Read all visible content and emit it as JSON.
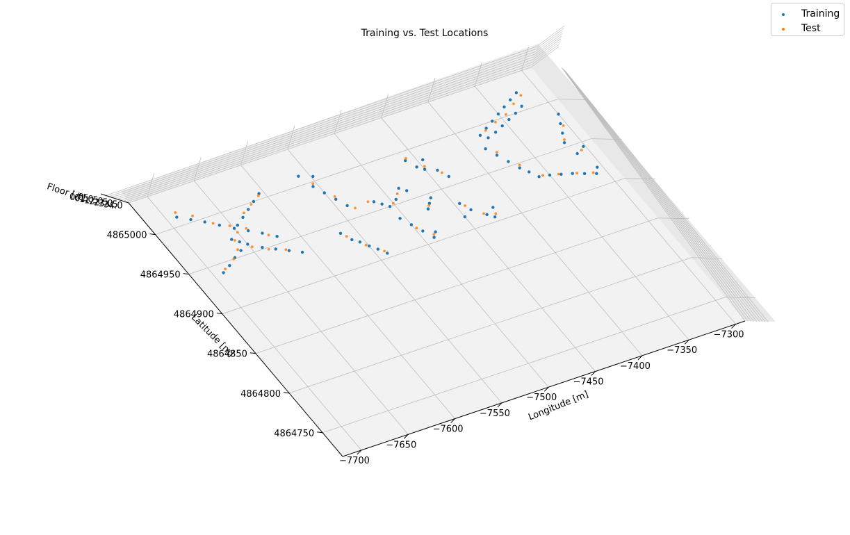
{
  "chart_data": {
    "type": "scatter",
    "projection": "3d",
    "title": "Training vs. Test Locations",
    "xlabel": "Longitude [m]",
    "ylabel": "Latitude [m]",
    "zlabel": "Floor [#]",
    "xticks": [
      "−7700",
      "−7650",
      "−7600",
      "−7550",
      "−7500",
      "−7450",
      "−7400",
      "−7350",
      "−7300"
    ],
    "yticks": [
      "4864750",
      "4864800",
      "4864850",
      "4864900",
      "4864950",
      "4865000"
    ],
    "zticks": [
      "0.0",
      "0.5",
      "1.0",
      "1.5",
      "2.0",
      "2.5",
      "3.0",
      "3.5",
      "4.0"
    ],
    "xlim": [
      -7720,
      -7290
    ],
    "ylim": [
      4864720,
      4865040
    ],
    "grid": true,
    "legend": "top-right",
    "series": [
      {
        "name": "Training",
        "color": "#1f77b4",
        "points": [
          [
            -7690,
            4865010
          ],
          [
            -7680,
            4865003
          ],
          [
            -7670,
            4864996
          ],
          [
            -7660,
            4864988
          ],
          [
            -7650,
            4864980
          ],
          [
            -7640,
            4864973
          ],
          [
            -7630,
            4864966
          ],
          [
            -7620,
            4864958
          ],
          [
            -7635,
            4864988
          ],
          [
            -7625,
            4864994
          ],
          [
            -7615,
            4865000
          ],
          [
            -7605,
            4865006
          ],
          [
            -7645,
            4864982
          ],
          [
            -7690,
            4864940
          ],
          [
            -7680,
            4864945
          ],
          [
            -7670,
            4864951
          ],
          [
            -7660,
            4864956
          ],
          [
            -7650,
            4864960
          ],
          [
            -7640,
            4864952
          ],
          [
            -7630,
            4864946
          ],
          [
            -7620,
            4864940
          ],
          [
            -7610,
            4864934
          ],
          [
            -7660,
            4864970
          ],
          [
            -7655,
            4864965
          ],
          [
            -7560,
            4865010
          ],
          [
            -7555,
            4864995
          ],
          [
            -7550,
            4864985
          ],
          [
            -7545,
            4864975
          ],
          [
            -7540,
            4864965
          ],
          [
            -7548,
            4865005
          ],
          [
            -7565,
            4864940
          ],
          [
            -7560,
            4864930
          ],
          [
            -7555,
            4864925
          ],
          [
            -7550,
            4864918
          ],
          [
            -7545,
            4864912
          ],
          [
            -7540,
            4864905
          ],
          [
            -7515,
            4864960
          ],
          [
            -7510,
            4864955
          ],
          [
            -7505,
            4864950
          ],
          [
            -7495,
            4864955
          ],
          [
            -7485,
            4864965
          ],
          [
            -7480,
            4864960
          ],
          [
            -7505,
            4864935
          ],
          [
            -7500,
            4864925
          ],
          [
            -7495,
            4864915
          ],
          [
            -7490,
            4864905
          ],
          [
            -7485,
            4864910
          ],
          [
            -7475,
            4864935
          ],
          [
            -7470,
            4864940
          ],
          [
            -7465,
            4864945
          ],
          [
            -7460,
            4864990
          ],
          [
            -7455,
            4864980
          ],
          [
            -7450,
            4864975
          ],
          [
            -7445,
            4864985
          ],
          [
            -7440,
            4864970
          ],
          [
            -7435,
            4864960
          ],
          [
            -7445,
            4864930
          ],
          [
            -7440,
            4864920
          ],
          [
            -7430,
            4864910
          ],
          [
            -7425,
            4864905
          ],
          [
            -7420,
            4864915
          ],
          [
            -7450,
            4864915
          ],
          [
            -7380,
            4864990
          ],
          [
            -7370,
            4864995
          ],
          [
            -7360,
            4865000
          ],
          [
            -7350,
            4865005
          ],
          [
            -7340,
            4865010
          ],
          [
            -7330,
            4865015
          ],
          [
            -7320,
            4865020
          ],
          [
            -7375,
            4864985
          ],
          [
            -7365,
            4864988
          ],
          [
            -7355,
            4864992
          ],
          [
            -7345,
            4864996
          ],
          [
            -7335,
            4865000
          ],
          [
            -7325,
            4865005
          ],
          [
            -7385,
            4864975
          ],
          [
            -7380,
            4864965
          ],
          [
            -7375,
            4864955
          ],
          [
            -7370,
            4864945
          ],
          [
            -7365,
            4864938
          ],
          [
            -7360,
            4864930
          ],
          [
            -7350,
            4864928
          ],
          [
            -7340,
            4864925
          ],
          [
            -7330,
            4864922
          ],
          [
            -7320,
            4864918
          ],
          [
            -7310,
            4864914
          ],
          [
            -7305,
            4864920
          ],
          [
            -7315,
            4864955
          ],
          [
            -7310,
            4864965
          ],
          [
            -7305,
            4864975
          ],
          [
            -7300,
            4864985
          ],
          [
            -7312,
            4864940
          ],
          [
            -7302,
            4864945
          ]
        ]
      },
      {
        "name": "Test",
        "color": "#ff7f0e",
        "points": [
          [
            -7688,
            4865015
          ],
          [
            -7676,
            4865006
          ],
          [
            -7664,
            4864992
          ],
          [
            -7652,
            4864984
          ],
          [
            -7640,
            4864976
          ],
          [
            -7626,
            4864962
          ],
          [
            -7631,
            4864992
          ],
          [
            -7619,
            4864998
          ],
          [
            -7607,
            4865004
          ],
          [
            -7686,
            4864943
          ],
          [
            -7672,
            4864950
          ],
          [
            -7662,
            4864958
          ],
          [
            -7648,
            4864956
          ],
          [
            -7636,
            4864948
          ],
          [
            -7622,
            4864942
          ],
          [
            -7658,
            4864968
          ],
          [
            -7650,
            4864975
          ],
          [
            -7553,
            4864998
          ],
          [
            -7544,
            4864978
          ],
          [
            -7535,
            4864960
          ],
          [
            -7562,
            4864935
          ],
          [
            -7552,
            4864920
          ],
          [
            -7541,
            4864908
          ],
          [
            -7520,
            4864962
          ],
          [
            -7500,
            4864952
          ],
          [
            -7490,
            4864960
          ],
          [
            -7498,
            4864920
          ],
          [
            -7488,
            4864908
          ],
          [
            -7472,
            4864938
          ],
          [
            -7458,
            4864992
          ],
          [
            -7448,
            4864978
          ],
          [
            -7438,
            4864966
          ],
          [
            -7442,
            4864926
          ],
          [
            -7432,
            4864912
          ],
          [
            -7422,
            4864908
          ],
          [
            -7372,
            4864993
          ],
          [
            -7358,
            4864998
          ],
          [
            -7344,
            4865002
          ],
          [
            -7330,
            4865010
          ],
          [
            -7318,
            4865016
          ],
          [
            -7378,
            4864968
          ],
          [
            -7368,
            4864948
          ],
          [
            -7356,
            4864930
          ],
          [
            -7342,
            4864926
          ],
          [
            -7326,
            4864921
          ],
          [
            -7312,
            4864916
          ],
          [
            -7313,
            4864958
          ],
          [
            -7304,
            4864972
          ],
          [
            -7306,
            4864942
          ]
        ]
      }
    ]
  }
}
